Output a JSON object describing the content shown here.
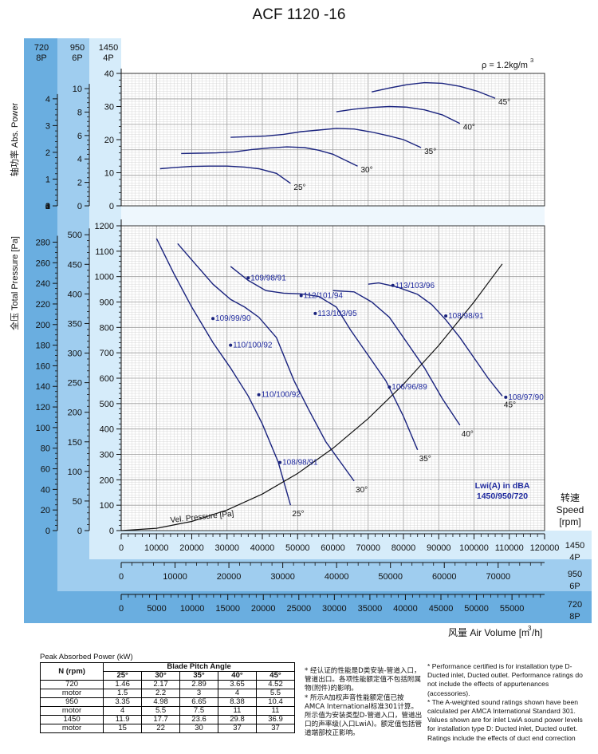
{
  "title": "ACF 1120 -16",
  "density_label": "ρ = 1.2kg/m",
  "density_sup": "3",
  "power_axis": {
    "label": "轴功率 Abs. Power",
    "cols": [
      {
        "head1": "720",
        "head2": "8P",
        "ticks": [
          "0",
          "1",
          "2",
          "3",
          "4"
        ]
      },
      {
        "head1": "950",
        "head2": "6P",
        "ticks": [
          "0",
          "2",
          "4",
          "6",
          "8",
          "10"
        ]
      },
      {
        "head1": "1450",
        "head2": "4P",
        "ticks": [
          "0",
          "10",
          "20",
          "30",
          "40"
        ]
      }
    ]
  },
  "pressure_axis": {
    "label": "全压 Total Pressure [Pa]",
    "cols": [
      {
        "ticks": [
          "0",
          "20",
          "40",
          "60",
          "80",
          "100",
          "120",
          "140",
          "160",
          "180",
          "200",
          "220",
          "240",
          "260",
          "280"
        ]
      },
      {
        "ticks": [
          "0",
          "50",
          "100",
          "150",
          "200",
          "250",
          "300",
          "350",
          "400",
          "450",
          "500"
        ]
      },
      {
        "ticks": [
          "0",
          "100",
          "200",
          "300",
          "400",
          "500",
          "600",
          "700",
          "800",
          "900",
          "1000",
          "1100",
          "1200"
        ]
      }
    ]
  },
  "flow_axes": [
    {
      "speed": "1450",
      "poles": "4P",
      "ticks": [
        "0",
        "10000",
        "20000",
        "30000",
        "40000",
        "50000",
        "60000",
        "70000",
        "80000",
        "90000",
        "100000",
        "110000",
        "120000"
      ]
    },
    {
      "speed": "950",
      "poles": "6P",
      "ticks": [
        "0",
        "10000",
        "20000",
        "30000",
        "40000",
        "50000",
        "60000",
        "70000"
      ]
    },
    {
      "speed": "720",
      "poles": "8P",
      "ticks": [
        "0",
        "5000",
        "10000",
        "15000",
        "20000",
        "25000",
        "30000",
        "35000",
        "40000",
        "45000",
        "50000",
        "55000"
      ]
    }
  ],
  "x_label": "风量 Air Volume [m",
  "x_label_sup": "3",
  "x_label_end": "/h]",
  "speed_label": {
    "cn": "转速",
    "en": "Speed",
    "unit": "[rpm]"
  },
  "lwi_label": {
    "line1": "Lwi(A) in dBA",
    "line2": "1450/950/720"
  },
  "vel_pressure_label": "Vel. Pressure [Pa]",
  "chart_data": [
    {
      "type": "line",
      "title": "",
      "xlabel": "风量 Air Volume [m3/h]",
      "ylabel": "轴功率 Abs. Power",
      "xlim": [
        0,
        120000
      ],
      "ylim": [
        0,
        40
      ],
      "series": [
        {
          "name": "25°",
          "x": [
            11000,
            15000,
            20000,
            25000,
            30000,
            35000,
            39000,
            44000,
            48000
          ],
          "y": [
            11.2,
            11.6,
            11.9,
            12.0,
            12.0,
            11.7,
            11.2,
            9.8,
            6.8
          ]
        },
        {
          "name": "30°",
          "x": [
            17000,
            22000,
            27000,
            32000,
            37000,
            42000,
            47000,
            52000,
            56000,
            60000,
            67000
          ],
          "y": [
            15.8,
            15.9,
            16.0,
            16.3,
            17.0,
            17.5,
            17.8,
            17.6,
            16.8,
            15.6,
            12.0
          ]
        },
        {
          "name": "35°",
          "x": [
            31000,
            36000,
            41000,
            46000,
            51000,
            56000,
            61000,
            66000,
            71000,
            76000,
            80000,
            85000
          ],
          "y": [
            20.7,
            20.9,
            21.1,
            21.6,
            22.4,
            22.9,
            23.4,
            23.2,
            22.3,
            21.1,
            20.0,
            17.6
          ]
        },
        {
          "name": "40°",
          "x": [
            61000,
            66000,
            71000,
            76000,
            81000,
            86000,
            91000,
            96000
          ],
          "y": [
            28.4,
            29.2,
            29.7,
            30.0,
            29.8,
            29.0,
            27.5,
            24.9
          ]
        },
        {
          "name": "45°",
          "x": [
            71000,
            76000,
            81000,
            86000,
            91000,
            96000,
            101000,
            106000
          ],
          "y": [
            34.4,
            35.6,
            36.6,
            37.2,
            37.0,
            36.1,
            34.6,
            32.5
          ]
        }
      ],
      "annotations": [
        "25°",
        "30°",
        "35°",
        "40°",
        "45°"
      ]
    },
    {
      "type": "line",
      "title": "",
      "xlabel": "风量 Air Volume [m3/h]",
      "ylabel": "全压 Total Pressure [Pa]",
      "xlim": [
        0,
        120000
      ],
      "ylim": [
        0,
        1200
      ],
      "series": [
        {
          "name": "25°",
          "x": [
            10000,
            15000,
            20000,
            26000,
            31000,
            36000,
            40000,
            44500,
            48000
          ],
          "y": [
            1150,
            1010,
            880,
            740,
            640,
            530,
            420,
            270,
            100
          ]
        },
        {
          "name": "30°",
          "x": [
            16000,
            21000,
            26000,
            31000,
            35000,
            39000,
            44000,
            49000,
            53000,
            58000,
            66000
          ],
          "y": [
            1130,
            1050,
            970,
            910,
            880,
            840,
            760,
            590,
            480,
            350,
            195
          ]
        },
        {
          "name": "35°",
          "x": [
            31000,
            36000,
            41000,
            46000,
            51000,
            56000,
            61000,
            65000,
            70000,
            75000,
            80000,
            84000
          ],
          "y": [
            1040,
            985,
            945,
            935,
            932,
            922,
            880,
            790,
            690,
            590,
            450,
            318
          ]
        },
        {
          "name": "40°",
          "x": [
            60000,
            66000,
            71000,
            76000,
            81000,
            86000,
            91000,
            96000
          ],
          "y": [
            945,
            940,
            900,
            840,
            740,
            640,
            520,
            415
          ]
        },
        {
          "name": "45°",
          "x": [
            70000,
            73000,
            78000,
            84000,
            88000,
            92000,
            96000,
            100000,
            104000,
            108000
          ],
          "y": [
            970,
            975,
            960,
            930,
            890,
            830,
            760,
            680,
            600,
            530
          ]
        },
        {
          "name": "Vel. Pressure [Pa]",
          "x": [
            0,
            10000,
            20000,
            30000,
            40000,
            50000,
            60000,
            70000,
            80000,
            90000,
            100000,
            108000
          ],
          "y": [
            0,
            9,
            36,
            81,
            144,
            225,
            324,
            441,
            576,
            729,
            900,
            1050
          ]
        }
      ],
      "point_labels": [
        {
          "text": "109/98/91",
          "x": 36000,
          "y": 995
        },
        {
          "text": "109/99/90",
          "x": 26000,
          "y": 835
        },
        {
          "text": "110/100/92",
          "x": 31000,
          "y": 730
        },
        {
          "text": "110/100/92",
          "x": 39000,
          "y": 535
        },
        {
          "text": "108/98/91",
          "x": 45000,
          "y": 268
        },
        {
          "text": "112/101/94",
          "x": 51000,
          "y": 925
        },
        {
          "text": "113/103/95",
          "x": 55000,
          "y": 855
        },
        {
          "text": "106/96/89",
          "x": 76000,
          "y": 565
        },
        {
          "text": "113/103/96",
          "x": 77000,
          "y": 965
        },
        {
          "text": "108/98/91",
          "x": 92000,
          "y": 845
        },
        {
          "text": "108/97/90",
          "x": 109000,
          "y": 525
        }
      ],
      "end_labels": [
        "25°",
        "30°",
        "35°",
        "40°",
        "45°"
      ]
    }
  ],
  "power_table": {
    "caption": "Peak Absorbed Power (kW)",
    "header_n": "N (rpm)",
    "header_group": "Blade Pitch Angle",
    "angles": [
      "25°",
      "30°",
      "35°",
      "40°",
      "45°"
    ],
    "rows": [
      {
        "label": "720",
        "values": [
          "1.46",
          "2.17",
          "2.89",
          "3.65",
          "4.52"
        ]
      },
      {
        "label": "motor",
        "values": [
          "1.5",
          "2.2",
          "3",
          "4",
          "5.5"
        ]
      },
      {
        "label": "950",
        "values": [
          "3.35",
          "4.98",
          "6.65",
          "8.38",
          "10.4"
        ]
      },
      {
        "label": "motor",
        "values": [
          "4",
          "5.5",
          "7.5",
          "11",
          "11"
        ]
      },
      {
        "label": "1450",
        "values": [
          "11.9",
          "17.7",
          "23.6",
          "29.8",
          "36.9"
        ]
      },
      {
        "label": "motor",
        "values": [
          "15",
          "22",
          "30",
          "37",
          "37"
        ]
      }
    ]
  },
  "notes_cn": [
    "* 经认证的性能是D类安装-管道入口，管道出口。各项性能额定值不包括附属物(附件)的影响。",
    "* 所示A加权声音性能额定值已按AMCA International标准301计算。所示值为安装类型D-管道入口，管道出口的声率级(入口LwiA)。额定值包括管道端部校正影响。"
  ],
  "notes_en": [
    "* Performance certified is for installation type D-Ducted inlet, Ducted outlet. Performance ratings do not include the effects of appurtenances (accessories).",
    "* The A-weighted sound ratings shown have been calculated per AMCA International Standard 301. Values shown are for inlet LwiA sound power levels for installation type D: Ducted inlet, Ducted outlet. Ratings include the effects of duct end correction"
  ],
  "colors": {
    "curve": "#1a237e",
    "band_dark": "#6aaee0",
    "band_mid": "#9fcdef",
    "band_light": "#d6ecfa",
    "label_blue": "#1f2a9e"
  }
}
